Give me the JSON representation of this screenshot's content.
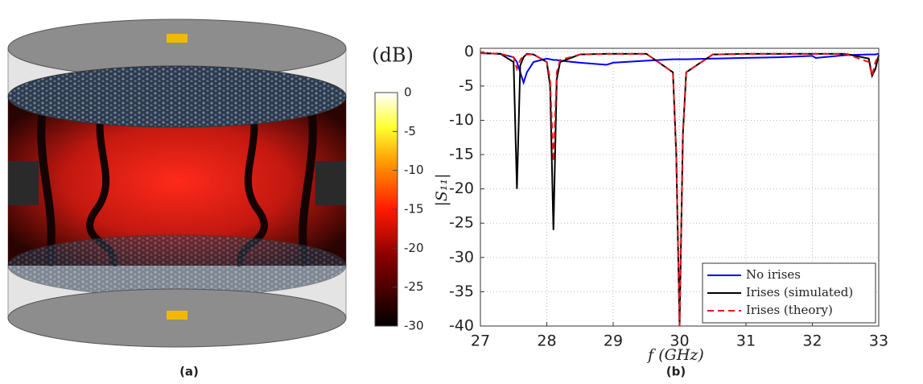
{
  "chart_data": [
    {
      "type": "colorbar",
      "title": "(dB)",
      "caption": "(a)",
      "ylim": [
        -30,
        0
      ],
      "yticks": [
        0,
        -5,
        -10,
        -15,
        -20,
        -25,
        -30
      ]
    },
    {
      "type": "line",
      "caption": "(b)",
      "xlabel": "f (GHz)",
      "ylabel": "|S₁₁|",
      "xlim": [
        27,
        33
      ],
      "ylim": [
        -40,
        0.5
      ],
      "xticks": [
        27,
        28,
        29,
        30,
        31,
        32,
        33
      ],
      "yticks": [
        0,
        -5,
        -10,
        -15,
        -20,
        -25,
        -30,
        -35,
        -40
      ],
      "grid": true,
      "legend": "lower right",
      "x": [
        27,
        27.3,
        27.5,
        27.55,
        27.6,
        27.65,
        27.7,
        27.8,
        28,
        28.05,
        28.1,
        28.15,
        28.2,
        28.5,
        28.9,
        29,
        29.5,
        29.9,
        29.95,
        30,
        30.05,
        30.1,
        30.5,
        31,
        31.5,
        32,
        32.05,
        32.5,
        32.85,
        32.9,
        32.95,
        33
      ],
      "series": [
        {
          "name": "No irises",
          "color": "#0000ff",
          "linestyle": "solid",
          "values": [
            -0.2,
            -0.3,
            -0.8,
            -1.5,
            -3,
            -4.5,
            -3,
            -1.5,
            -1,
            -1.1,
            -1.2,
            -1.2,
            -1.3,
            -1.6,
            -1.9,
            -1.6,
            -1.3,
            -1.1,
            -1.1,
            -1.1,
            -1.1,
            -1.1,
            -1,
            -0.9,
            -0.8,
            -0.6,
            -0.9,
            -0.5,
            -0.4,
            -0.4,
            -0.4,
            -0.3
          ]
        },
        {
          "name": "Irises (simulated)",
          "color": "#000000",
          "linestyle": "solid",
          "values": [
            -0.2,
            -0.3,
            -1.5,
            -20,
            -2,
            -0.8,
            -0.3,
            -0.4,
            -1.5,
            -5,
            -26,
            -4,
            -1.5,
            -0.4,
            -0.3,
            -0.3,
            -0.3,
            -3,
            -15,
            -40,
            -12,
            -3,
            -0.4,
            -0.3,
            -0.3,
            -0.3,
            -0.3,
            -0.3,
            -1,
            -3.5,
            -2.5,
            -0.5
          ]
        },
        {
          "name": "Irises (theory)",
          "color": "#e8141c",
          "linestyle": "dashed",
          "values": [
            -0.2,
            -0.3,
            -0.8,
            -2.5,
            -1.2,
            -0.6,
            -0.4,
            -0.4,
            -1.5,
            -4,
            -16,
            -3,
            -1.2,
            -0.4,
            -0.3,
            -0.3,
            -0.3,
            -3,
            -15,
            -40,
            -12,
            -3,
            -0.4,
            -0.3,
            -0.3,
            -0.3,
            -0.3,
            -0.3,
            -1.5,
            -3.5,
            -1.5,
            -0.5
          ]
        }
      ]
    }
  ]
}
